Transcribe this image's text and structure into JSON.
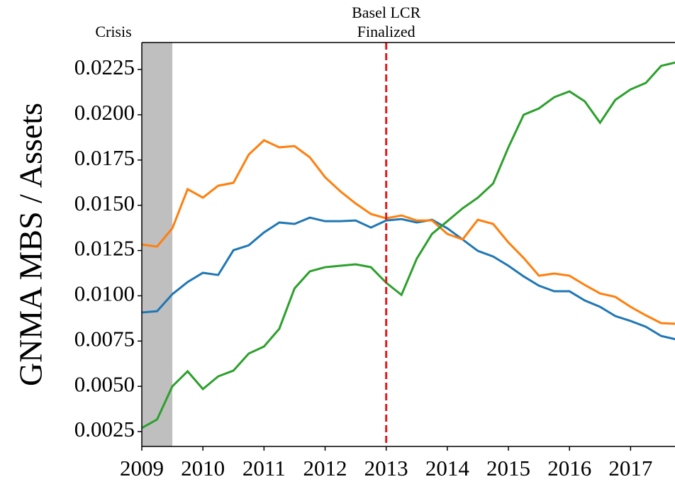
{
  "chart_data": {
    "type": "line",
    "ylabel": "GNMA MBS / Assets",
    "x": [
      2009,
      2009.25,
      2009.5,
      2009.75,
      2010,
      2010.25,
      2010.5,
      2010.75,
      2011,
      2011.25,
      2011.5,
      2011.75,
      2012,
      2012.25,
      2012.5,
      2012.75,
      2013,
      2013.25,
      2013.5,
      2013.75,
      2014,
      2014.25,
      2014.5,
      2014.75,
      2015,
      2015.25,
      2015.5,
      2015.75,
      2016,
      2016.25,
      2016.5,
      2016.75,
      2017,
      2017.25,
      2017.5,
      2017.75
    ],
    "series": [
      {
        "color": "#1f77b4",
        "values": [
          0.00908,
          0.00915,
          0.01009,
          0.01076,
          0.01127,
          0.01115,
          0.01252,
          0.01279,
          0.0135,
          0.01405,
          0.01397,
          0.01432,
          0.01412,
          0.01412,
          0.01416,
          0.01377,
          0.01416,
          0.01424,
          0.01405,
          0.0142,
          0.01373,
          0.01311,
          0.01248,
          0.01217,
          0.01166,
          0.01107,
          0.01056,
          0.01025,
          0.01025,
          0.00974,
          0.00939,
          0.00888,
          0.00861,
          0.00829,
          0.00778,
          0.00759
        ]
      },
      {
        "color": "#ff7f0e",
        "values": [
          0.01283,
          0.01272,
          0.01373,
          0.01589,
          0.01542,
          0.01608,
          0.01624,
          0.0178,
          0.01859,
          0.0182,
          0.01827,
          0.01765,
          0.01655,
          0.01577,
          0.0151,
          0.01452,
          0.01428,
          0.01444,
          0.01416,
          0.01416,
          0.01342,
          0.01311,
          0.0142,
          0.01397,
          0.01295,
          0.01209,
          0.01111,
          0.01123,
          0.01111,
          0.0106,
          0.01013,
          0.00994,
          0.00939,
          0.00892,
          0.00849,
          0.00845
        ]
      },
      {
        "color": "#2ca02c",
        "values": [
          0.0027,
          0.00317,
          0.005,
          0.00583,
          0.00485,
          0.00555,
          0.00587,
          0.00681,
          0.0072,
          0.00818,
          0.01041,
          0.01135,
          0.01158,
          0.01166,
          0.01174,
          0.01158,
          0.01072,
          0.01005,
          0.01205,
          0.01342,
          0.01412,
          0.01483,
          0.01542,
          0.0162,
          0.0182,
          0.02,
          0.02035,
          0.02097,
          0.02129,
          0.02074,
          0.01956,
          0.02082,
          0.0214,
          0.02176,
          0.0227,
          0.0229
        ]
      }
    ],
    "xlim": [
      2009,
      2017.75
    ],
    "ylim": [
      0.00168,
      0.02399
    ],
    "xticks": [
      2009,
      2010,
      2011,
      2012,
      2013,
      2014,
      2015,
      2016,
      2017
    ],
    "yticks": [
      0.0025,
      {
        "value": 0.005,
        "label": "0.0050"
      },
      0.0075,
      {
        "value": 0.01,
        "label": "0.0100"
      },
      0.0125,
      {
        "value": 0.015,
        "label": "0.0150"
      },
      0.0175,
      {
        "value": 0.02,
        "label": "0.0200"
      },
      0.0225
    ],
    "shaded_span": {
      "label": "Crisis",
      "x": [
        2009,
        2009.5
      ],
      "color": "#bfbfbf"
    },
    "vline": {
      "lines": [
        "Basel LCR",
        "Finalized"
      ],
      "x": 2013,
      "color": "#e41a1c"
    }
  }
}
